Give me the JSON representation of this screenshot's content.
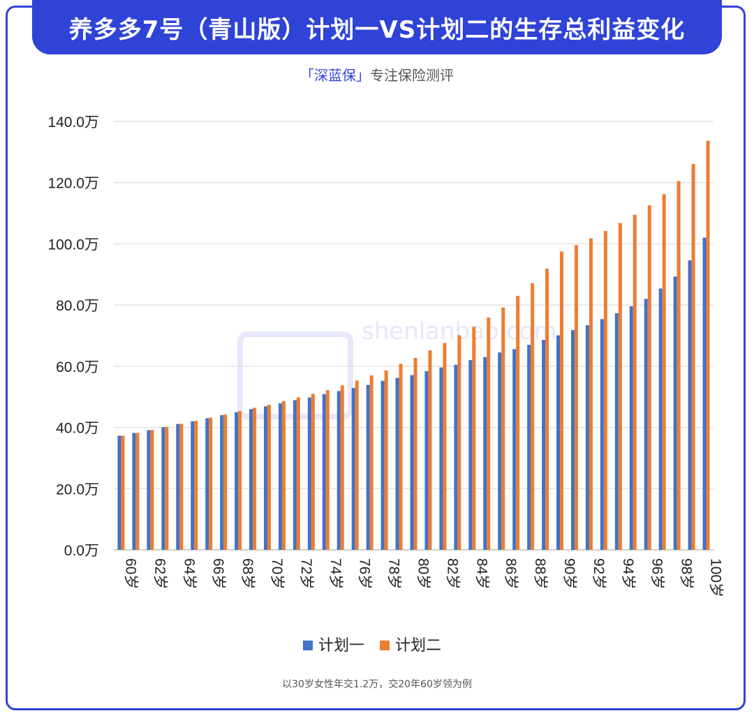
{
  "header": {
    "title": "养多多7号（青山版）计划一VS计划二的生存总利益变化"
  },
  "subtitle": {
    "brand": "「深蓝保」",
    "rest": "专注保险测评"
  },
  "watermark": {
    "text": "shenlanbao.com"
  },
  "footnote": "以30岁女性年交1.2万，交20年60岁领为例",
  "colors": {
    "frame": "#2f43d6",
    "plan1": "#4472c4",
    "plan2": "#ed7d31",
    "grid": "#e3e3e3"
  },
  "chart_data": {
    "type": "bar",
    "title": "养多多7号（青山版）计划一VS计划二的生存总利益变化",
    "ylim": [
      0,
      140
    ],
    "yticks": [
      "0.0万",
      "20.0万",
      "40.0万",
      "60.0万",
      "80.0万",
      "100.0万",
      "120.0万",
      "140.0万"
    ],
    "ytick_values": [
      0,
      20,
      40,
      60,
      80,
      100,
      120,
      140
    ],
    "grid": true,
    "legend": "bottom",
    "categories": [
      "60岁",
      "61岁",
      "62岁",
      "63岁",
      "64岁",
      "65岁",
      "66岁",
      "67岁",
      "68岁",
      "69岁",
      "70岁",
      "71岁",
      "72岁",
      "73岁",
      "74岁",
      "75岁",
      "76岁",
      "77岁",
      "78岁",
      "79岁",
      "80岁",
      "81岁",
      "82岁",
      "83岁",
      "84岁",
      "85岁",
      "86岁",
      "87岁",
      "88岁",
      "89岁",
      "90岁",
      "91岁",
      "92岁",
      "93岁",
      "94岁",
      "95岁",
      "96岁",
      "97岁",
      "98岁",
      "99岁",
      "100岁"
    ],
    "xtick_labels": [
      "60岁",
      "",
      "62岁",
      "",
      "64岁",
      "",
      "66岁",
      "",
      "68岁",
      "",
      "70岁",
      "",
      "72岁",
      "",
      "74岁",
      "",
      "76岁",
      "",
      "78岁",
      "",
      "80岁",
      "",
      "82岁",
      "",
      "84岁",
      "",
      "86岁",
      "",
      "88岁",
      "",
      "90岁",
      "",
      "92岁",
      "",
      "94岁",
      "",
      "96岁",
      "",
      "98岁",
      "",
      "100岁"
    ],
    "series": [
      {
        "name": "计划一",
        "values": [
          37.3,
          38.2,
          39.1,
          40.1,
          41.1,
          42.0,
          43.0,
          44.0,
          45.0,
          46.0,
          46.9,
          47.9,
          48.9,
          49.8,
          50.9,
          51.9,
          52.9,
          53.9,
          55.2,
          56.2,
          57.1,
          58.4,
          59.6,
          60.5,
          62.0,
          63.0,
          64.5,
          65.6,
          67.0,
          68.6,
          70.1,
          71.8,
          73.4,
          75.4,
          77.3,
          79.6,
          82.0,
          85.4,
          89.3,
          94.6,
          102.0
        ]
      },
      {
        "name": "计划二",
        "values": [
          37.3,
          38.2,
          39.2,
          40.2,
          41.2,
          42.2,
          43.2,
          44.2,
          45.3,
          46.4,
          47.4,
          48.6,
          49.8,
          51.0,
          52.2,
          53.7,
          55.3,
          57.0,
          58.6,
          60.8,
          62.7,
          65.2,
          67.6,
          70.1,
          72.9,
          75.9,
          79.2,
          83.0,
          87.1,
          91.9,
          97.5,
          99.6,
          101.8,
          104.2,
          106.8,
          109.5,
          112.6,
          116.2,
          120.5,
          126.1,
          133.7
        ]
      }
    ]
  }
}
